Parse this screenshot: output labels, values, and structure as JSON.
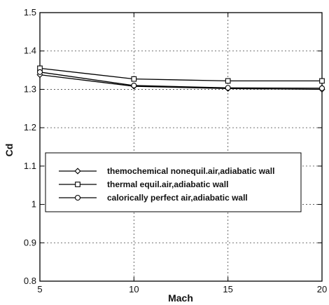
{
  "chart_data": {
    "type": "line",
    "xlabel": "Mach",
    "ylabel": "Cd",
    "xlim": [
      5,
      20
    ],
    "ylim": [
      0.8,
      1.5
    ],
    "xticks": [
      "5",
      "10",
      "15",
      "20"
    ],
    "yticks": [
      "0.8",
      "0.9",
      "1",
      "1.1",
      "1.2",
      "1.3",
      "1.4",
      "1.5"
    ],
    "grid": "dotted",
    "legend_position": "center-left",
    "series": [
      {
        "name": "themochemical nonequil.air,adiabatic wall",
        "marker": "diamond",
        "x": [
          5,
          10,
          15,
          20
        ],
        "y": [
          1.338,
          1.308,
          1.302,
          1.3
        ]
      },
      {
        "name": "thermal equil.air,adiabatic wall",
        "marker": "square",
        "x": [
          5,
          10,
          15,
          20
        ],
        "y": [
          1.355,
          1.327,
          1.322,
          1.322
        ]
      },
      {
        "name": "calorically perfect air,adiabatic wall",
        "marker": "circle",
        "x": [
          5,
          10,
          15,
          20
        ],
        "y": [
          1.345,
          1.31,
          1.304,
          1.303
        ]
      }
    ]
  }
}
